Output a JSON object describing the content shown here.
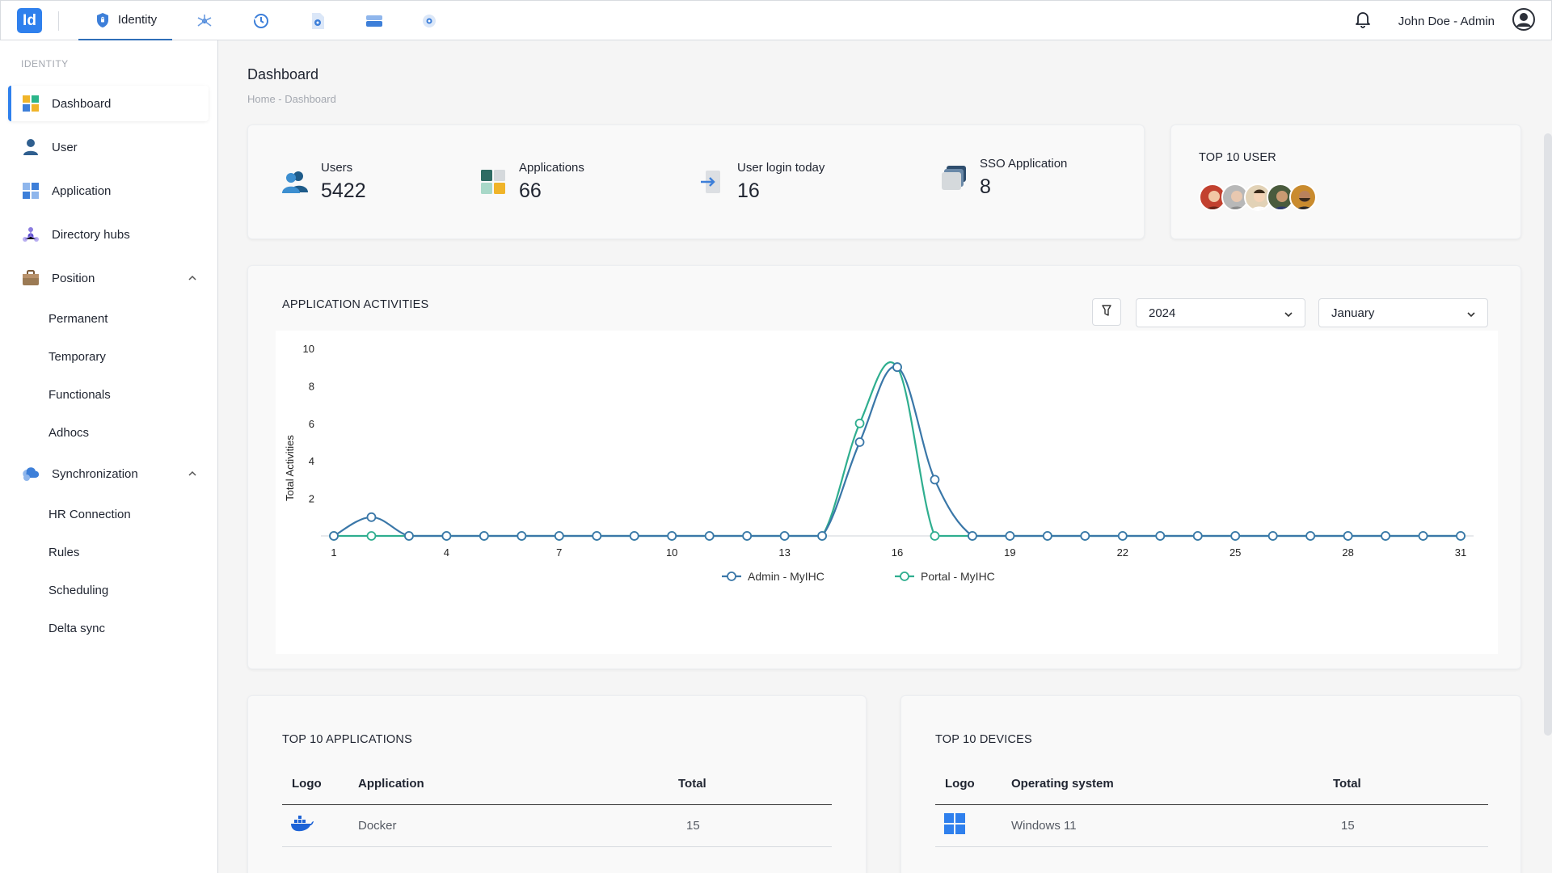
{
  "topbar": {
    "logo_text": "Id",
    "tabs": [
      {
        "label": "Identity",
        "icon": "shield-icon",
        "active": true
      },
      {
        "label": "",
        "icon": "network-icon"
      },
      {
        "label": "",
        "icon": "history-icon"
      },
      {
        "label": "",
        "icon": "document-settings-icon"
      },
      {
        "label": "",
        "icon": "server-icon"
      },
      {
        "label": "",
        "icon": "gear-icon"
      }
    ],
    "user_name": "John Doe - Admin"
  },
  "sidebar": {
    "section_label": "IDENTITY",
    "items": [
      {
        "label": "Dashboard",
        "icon": "dashboard-icon",
        "active": true
      },
      {
        "label": "User",
        "icon": "user-icon"
      },
      {
        "label": "Application",
        "icon": "application-icon"
      },
      {
        "label": "Directory hubs",
        "icon": "directory-hub-icon"
      },
      {
        "label": "Position",
        "icon": "briefcase-icon",
        "expanded": true
      },
      {
        "label": "Synchronization",
        "icon": "cloud-sync-icon",
        "expanded": true
      }
    ],
    "position_children": [
      "Permanent",
      "Temporary",
      "Functionals",
      "Adhocs"
    ],
    "sync_children": [
      "HR Connection",
      "Rules",
      "Scheduling",
      "Delta sync"
    ]
  },
  "page": {
    "title": "Dashboard",
    "breadcrumb": "Home - Dashboard"
  },
  "stats": [
    {
      "label": "Users",
      "value": "5422",
      "icon": "users-icon"
    },
    {
      "label": "Applications",
      "value": "66",
      "icon": "apps-grid-icon"
    },
    {
      "label": "User login today",
      "value": "16",
      "icon": "login-icon"
    },
    {
      "label": "SSO Application",
      "value": "8",
      "icon": "sso-stack-icon"
    }
  ],
  "top_users": {
    "title": "TOP 10 USER",
    "avatars": [
      "#c2412f",
      "#b8b8b8",
      "#d9b48a",
      "#5a6b3d",
      "#c98b2e"
    ]
  },
  "activities": {
    "title": "APPLICATION ACTIVITIES",
    "year": "2024",
    "month": "January"
  },
  "chart_data": {
    "type": "line",
    "title": "APPLICATION ACTIVITIES",
    "xlabel": "",
    "ylabel": "Total Activities",
    "x": [
      1,
      2,
      3,
      4,
      5,
      6,
      7,
      8,
      9,
      10,
      11,
      12,
      13,
      14,
      15,
      16,
      17,
      18,
      19,
      20,
      21,
      22,
      23,
      24,
      25,
      26,
      27,
      28,
      29,
      30,
      31
    ],
    "x_ticks": [
      1,
      4,
      7,
      10,
      13,
      16,
      19,
      22,
      25,
      28,
      31
    ],
    "y_ticks": [
      2,
      4,
      6,
      8,
      10
    ],
    "ylim": [
      0,
      10
    ],
    "grid": false,
    "legend": "bottom",
    "series": [
      {
        "name": "Admin - MyIHC",
        "color": "#3a77a8",
        "values": [
          0,
          1,
          0,
          0,
          0,
          0,
          0,
          0,
          0,
          0,
          0,
          0,
          0,
          0,
          5,
          9,
          3,
          0,
          0,
          0,
          0,
          0,
          0,
          0,
          0,
          0,
          0,
          0,
          0,
          0,
          0
        ]
      },
      {
        "name": "Portal - MyIHC",
        "color": "#2fae8f",
        "values": [
          0,
          0,
          0,
          0,
          0,
          0,
          0,
          0,
          0,
          0,
          0,
          0,
          0,
          0,
          6,
          9,
          0,
          0,
          0,
          0,
          0,
          0,
          0,
          0,
          0,
          0,
          0,
          0,
          0,
          0,
          0
        ]
      }
    ]
  },
  "top_apps": {
    "title": "TOP 10 APPLICATIONS",
    "headers": [
      "Logo",
      "Application",
      "Total"
    ],
    "rows": [
      {
        "logo": "docker-icon",
        "name": "Docker",
        "total": "15"
      }
    ]
  },
  "top_devices": {
    "title": "TOP 10 DEVICES",
    "headers": [
      "Logo",
      "Operating system",
      "Total"
    ],
    "rows": [
      {
        "logo": "windows-icon",
        "name": "Windows 11",
        "total": "15"
      }
    ]
  }
}
